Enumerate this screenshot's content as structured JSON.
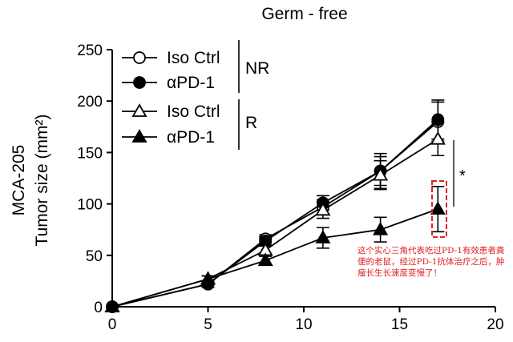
{
  "chart_data": {
    "type": "line",
    "title": "Germ - free",
    "ylabel_line1": "MCA-205",
    "ylabel_line2": "Tumor size (mm²)",
    "xlabel": "",
    "xlim": [
      0,
      20
    ],
    "ylim": [
      0,
      250
    ],
    "xticks": [
      0,
      5,
      10,
      15,
      20
    ],
    "yticks": [
      0,
      50,
      100,
      150,
      200,
      250
    ],
    "grid": false,
    "legend_position": "top-left",
    "legend_groups": [
      {
        "label": "NR",
        "entries": [
          "Iso Ctrl",
          "αPD-1"
        ]
      },
      {
        "label": "R",
        "entries": [
          "Iso Ctrl",
          "αPD-1"
        ]
      }
    ],
    "series": [
      {
        "name": "Iso Ctrl",
        "group": "NR",
        "marker": "circle-open",
        "x": [
          0,
          5,
          8,
          11,
          14,
          17
        ],
        "y": [
          0,
          22,
          66,
          97,
          132,
          180
        ],
        "err": [
          0,
          3,
          4,
          7,
          14,
          19
        ]
      },
      {
        "name": "αPD-1",
        "group": "NR",
        "marker": "circle-filled",
        "x": [
          0,
          5,
          8,
          11,
          14,
          17
        ],
        "y": [
          0,
          22,
          64,
          101,
          132,
          182
        ],
        "err": [
          0,
          3,
          4,
          7,
          17,
          19
        ]
      },
      {
        "name": "Iso Ctrl",
        "group": "R",
        "marker": "triangle-open",
        "x": [
          0,
          5,
          8,
          11,
          14,
          17
        ],
        "y": [
          0,
          27,
          55,
          94,
          128,
          163
        ],
        "err": [
          0,
          3,
          4,
          8,
          14,
          16
        ]
      },
      {
        "name": "αPD-1",
        "group": "R",
        "marker": "triangle-filled",
        "x": [
          0,
          5,
          8,
          11,
          14,
          17
        ],
        "y": [
          0,
          27,
          45,
          67,
          75,
          95
        ],
        "err": [
          0,
          3,
          4,
          10,
          12,
          22
        ]
      }
    ],
    "significance": "*",
    "annotation": "这个实心三角代表吃过PD-1有效患者粪便的老鼠，经过PD-1抗体治疗之后，肿瘤长生长速度变慢了！",
    "colors": {
      "series": "#000000",
      "annotation": "#e02020"
    }
  }
}
